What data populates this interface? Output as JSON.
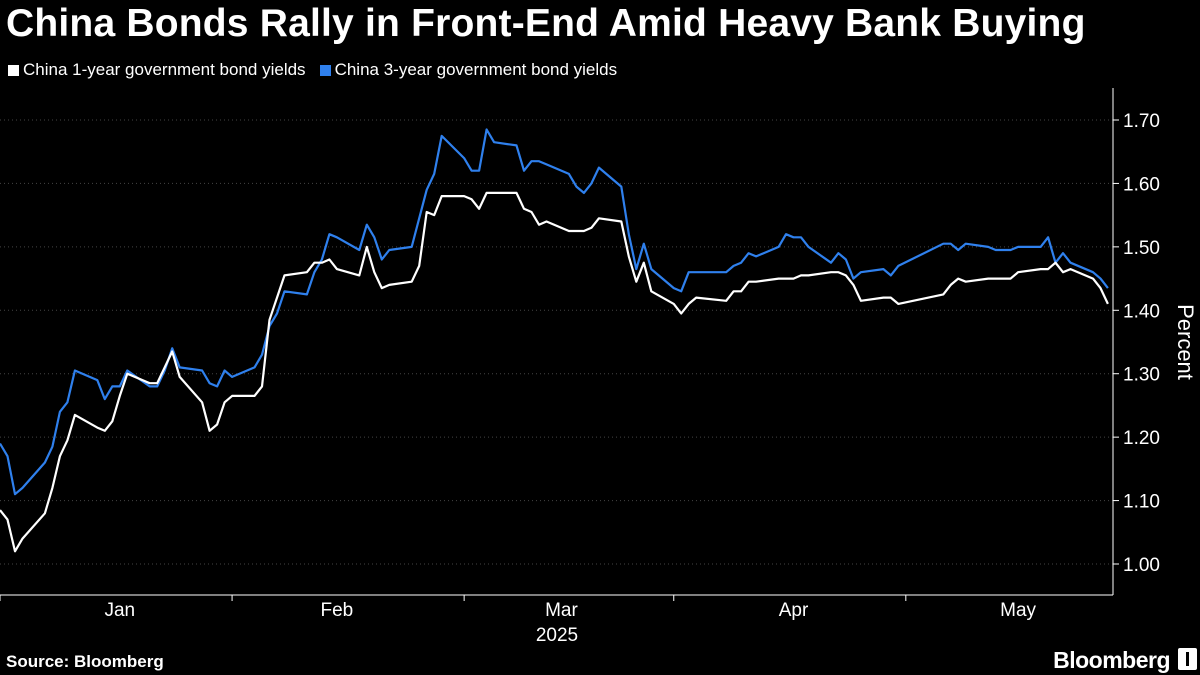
{
  "header": {
    "title": "China Bonds Rally in Front-End Amid Heavy Bank Buying"
  },
  "footer": {
    "source_label": "Source:",
    "source_value": "Bloomberg",
    "brand": "Bloomberg"
  },
  "colors": {
    "background": "#000000",
    "series_1y": "#ffffff",
    "series_3y": "#2f80ed",
    "axis": "#ffffff",
    "grid": "#444444"
  },
  "chart_data": {
    "type": "line",
    "title": "China Bonds Rally in Front-End Amid Heavy Bank Buying",
    "xlabel": "2025",
    "ylabel": "Percent",
    "ylim": [
      0.96,
      1.74
    ],
    "yticks": [
      1.0,
      1.1,
      1.2,
      1.3,
      1.4,
      1.5,
      1.6,
      1.7
    ],
    "ytick_labels": [
      "1.00",
      "1.10",
      "1.20",
      "1.30",
      "1.40",
      "1.50",
      "1.60",
      "1.70"
    ],
    "x_range": [
      "2024-12-31",
      "2025-05-24"
    ],
    "x_month_ticks": [
      "2024-12-31",
      "2025-01-31",
      "2025-03-03",
      "2025-03-31",
      "2025-05-01",
      "2025-05-31"
    ],
    "x_month_labels": [
      {
        "label": "Jan",
        "date": "2025-01-16"
      },
      {
        "label": "Feb",
        "date": "2025-02-14"
      },
      {
        "label": "Mar",
        "date": "2025-03-16"
      },
      {
        "label": "Apr",
        "date": "2025-04-16"
      },
      {
        "label": "May",
        "date": "2025-05-16"
      }
    ],
    "grid": "horizontal",
    "legend_position": "top-left",
    "series": [
      {
        "name": "China 1-year government bond yields",
        "color": "#ffffff",
        "points": [
          [
            "2024-12-31",
            1.085
          ],
          [
            "2025-01-01",
            1.07
          ],
          [
            "2025-01-02",
            1.02
          ],
          [
            "2025-01-03",
            1.04
          ],
          [
            "2025-01-06",
            1.08
          ],
          [
            "2025-01-07",
            1.12
          ],
          [
            "2025-01-08",
            1.17
          ],
          [
            "2025-01-09",
            1.195
          ],
          [
            "2025-01-10",
            1.235
          ],
          [
            "2025-01-13",
            1.215
          ],
          [
            "2025-01-14",
            1.21
          ],
          [
            "2025-01-15",
            1.225
          ],
          [
            "2025-01-16",
            1.265
          ],
          [
            "2025-01-17",
            1.3
          ],
          [
            "2025-01-20",
            1.285
          ],
          [
            "2025-01-21",
            1.285
          ],
          [
            "2025-01-22",
            1.31
          ],
          [
            "2025-01-23",
            1.335
          ],
          [
            "2025-01-24",
            1.295
          ],
          [
            "2025-01-27",
            1.255
          ],
          [
            "2025-01-28",
            1.21
          ],
          [
            "2025-01-29",
            1.22
          ],
          [
            "2025-01-30",
            1.255
          ],
          [
            "2025-01-31",
            1.265
          ],
          [
            "2025-02-03",
            1.265
          ],
          [
            "2025-02-04",
            1.28
          ],
          [
            "2025-02-05",
            1.385
          ],
          [
            "2025-02-06",
            1.42
          ],
          [
            "2025-02-07",
            1.455
          ],
          [
            "2025-02-10",
            1.46
          ],
          [
            "2025-02-11",
            1.475
          ],
          [
            "2025-02-12",
            1.475
          ],
          [
            "2025-02-13",
            1.48
          ],
          [
            "2025-02-14",
            1.465
          ],
          [
            "2025-02-17",
            1.455
          ],
          [
            "2025-02-18",
            1.5
          ],
          [
            "2025-02-19",
            1.46
          ],
          [
            "2025-02-20",
            1.435
          ],
          [
            "2025-02-21",
            1.44
          ],
          [
            "2025-02-24",
            1.445
          ],
          [
            "2025-02-25",
            1.47
          ],
          [
            "2025-02-26",
            1.555
          ],
          [
            "2025-02-27",
            1.55
          ],
          [
            "2025-02-28",
            1.58
          ],
          [
            "2025-03-03",
            1.58
          ],
          [
            "2025-03-04",
            1.575
          ],
          [
            "2025-03-05",
            1.56
          ],
          [
            "2025-03-06",
            1.585
          ],
          [
            "2025-03-07",
            1.585
          ],
          [
            "2025-03-10",
            1.585
          ],
          [
            "2025-03-11",
            1.56
          ],
          [
            "2025-03-12",
            1.555
          ],
          [
            "2025-03-13",
            1.535
          ],
          [
            "2025-03-14",
            1.54
          ],
          [
            "2025-03-17",
            1.525
          ],
          [
            "2025-03-18",
            1.525
          ],
          [
            "2025-03-19",
            1.525
          ],
          [
            "2025-03-20",
            1.53
          ],
          [
            "2025-03-21",
            1.545
          ],
          [
            "2025-03-24",
            1.54
          ],
          [
            "2025-03-25",
            1.485
          ],
          [
            "2025-03-26",
            1.445
          ],
          [
            "2025-03-27",
            1.475
          ],
          [
            "2025-03-28",
            1.43
          ],
          [
            "2025-03-31",
            1.41
          ],
          [
            "2025-04-01",
            1.395
          ],
          [
            "2025-04-02",
            1.41
          ],
          [
            "2025-04-03",
            1.42
          ],
          [
            "2025-04-07",
            1.415
          ],
          [
            "2025-04-08",
            1.43
          ],
          [
            "2025-04-09",
            1.43
          ],
          [
            "2025-04-10",
            1.445
          ],
          [
            "2025-04-11",
            1.445
          ],
          [
            "2025-04-14",
            1.45
          ],
          [
            "2025-04-15",
            1.45
          ],
          [
            "2025-04-16",
            1.45
          ],
          [
            "2025-04-17",
            1.455
          ],
          [
            "2025-04-18",
            1.455
          ],
          [
            "2025-04-21",
            1.46
          ],
          [
            "2025-04-22",
            1.46
          ],
          [
            "2025-04-23",
            1.455
          ],
          [
            "2025-04-24",
            1.44
          ],
          [
            "2025-04-25",
            1.415
          ],
          [
            "2025-04-28",
            1.42
          ],
          [
            "2025-04-29",
            1.42
          ],
          [
            "2025-04-30",
            1.41
          ],
          [
            "2025-05-06",
            1.425
          ],
          [
            "2025-05-07",
            1.44
          ],
          [
            "2025-05-08",
            1.45
          ],
          [
            "2025-05-09",
            1.445
          ],
          [
            "2025-05-12",
            1.45
          ],
          [
            "2025-05-13",
            1.45
          ],
          [
            "2025-05-14",
            1.45
          ],
          [
            "2025-05-15",
            1.45
          ],
          [
            "2025-05-16",
            1.46
          ],
          [
            "2025-05-19",
            1.465
          ],
          [
            "2025-05-20",
            1.465
          ],
          [
            "2025-05-21",
            1.475
          ],
          [
            "2025-05-22",
            1.46
          ],
          [
            "2025-05-23",
            1.465
          ],
          [
            "2025-05-26",
            1.45
          ],
          [
            "2025-05-27",
            1.435
          ],
          [
            "2025-05-28",
            1.41
          ]
        ]
      },
      {
        "name": "China 3-year government bond yields",
        "color": "#2f80ed",
        "points": [
          [
            "2024-12-31",
            1.19
          ],
          [
            "2025-01-01",
            1.17
          ],
          [
            "2025-01-02",
            1.11
          ],
          [
            "2025-01-03",
            1.12
          ],
          [
            "2025-01-06",
            1.16
          ],
          [
            "2025-01-07",
            1.185
          ],
          [
            "2025-01-08",
            1.24
          ],
          [
            "2025-01-09",
            1.255
          ],
          [
            "2025-01-10",
            1.305
          ],
          [
            "2025-01-13",
            1.29
          ],
          [
            "2025-01-14",
            1.26
          ],
          [
            "2025-01-15",
            1.28
          ],
          [
            "2025-01-16",
            1.28
          ],
          [
            "2025-01-17",
            1.305
          ],
          [
            "2025-01-20",
            1.28
          ],
          [
            "2025-01-21",
            1.28
          ],
          [
            "2025-01-22",
            1.305
          ],
          [
            "2025-01-23",
            1.34
          ],
          [
            "2025-01-24",
            1.31
          ],
          [
            "2025-01-27",
            1.305
          ],
          [
            "2025-01-28",
            1.285
          ],
          [
            "2025-01-29",
            1.28
          ],
          [
            "2025-01-30",
            1.305
          ],
          [
            "2025-01-31",
            1.295
          ],
          [
            "2025-02-03",
            1.31
          ],
          [
            "2025-02-04",
            1.33
          ],
          [
            "2025-02-05",
            1.375
          ],
          [
            "2025-02-06",
            1.395
          ],
          [
            "2025-02-07",
            1.43
          ],
          [
            "2025-02-10",
            1.425
          ],
          [
            "2025-02-11",
            1.46
          ],
          [
            "2025-02-12",
            1.48
          ],
          [
            "2025-02-13",
            1.52
          ],
          [
            "2025-02-14",
            1.515
          ],
          [
            "2025-02-17",
            1.495
          ],
          [
            "2025-02-18",
            1.535
          ],
          [
            "2025-02-19",
            1.515
          ],
          [
            "2025-02-20",
            1.48
          ],
          [
            "2025-02-21",
            1.495
          ],
          [
            "2025-02-24",
            1.5
          ],
          [
            "2025-02-25",
            1.545
          ],
          [
            "2025-02-26",
            1.59
          ],
          [
            "2025-02-27",
            1.615
          ],
          [
            "2025-02-28",
            1.675
          ],
          [
            "2025-03-03",
            1.64
          ],
          [
            "2025-03-04",
            1.62
          ],
          [
            "2025-03-05",
            1.62
          ],
          [
            "2025-03-06",
            1.685
          ],
          [
            "2025-03-07",
            1.665
          ],
          [
            "2025-03-10",
            1.66
          ],
          [
            "2025-03-11",
            1.62
          ],
          [
            "2025-03-12",
            1.635
          ],
          [
            "2025-03-13",
            1.635
          ],
          [
            "2025-03-14",
            1.63
          ],
          [
            "2025-03-17",
            1.615
          ],
          [
            "2025-03-18",
            1.595
          ],
          [
            "2025-03-19",
            1.585
          ],
          [
            "2025-03-20",
            1.6
          ],
          [
            "2025-03-21",
            1.625
          ],
          [
            "2025-03-24",
            1.595
          ],
          [
            "2025-03-25",
            1.52
          ],
          [
            "2025-03-26",
            1.465
          ],
          [
            "2025-03-27",
            1.505
          ],
          [
            "2025-03-28",
            1.465
          ],
          [
            "2025-03-31",
            1.435
          ],
          [
            "2025-04-01",
            1.43
          ],
          [
            "2025-04-02",
            1.46
          ],
          [
            "2025-04-03",
            1.46
          ],
          [
            "2025-04-07",
            1.46
          ],
          [
            "2025-04-08",
            1.47
          ],
          [
            "2025-04-09",
            1.475
          ],
          [
            "2025-04-10",
            1.49
          ],
          [
            "2025-04-11",
            1.485
          ],
          [
            "2025-04-14",
            1.5
          ],
          [
            "2025-04-15",
            1.52
          ],
          [
            "2025-04-16",
            1.515
          ],
          [
            "2025-04-17",
            1.515
          ],
          [
            "2025-04-18",
            1.5
          ],
          [
            "2025-04-21",
            1.475
          ],
          [
            "2025-04-22",
            1.49
          ],
          [
            "2025-04-23",
            1.48
          ],
          [
            "2025-04-24",
            1.45
          ],
          [
            "2025-04-25",
            1.46
          ],
          [
            "2025-04-28",
            1.465
          ],
          [
            "2025-04-29",
            1.455
          ],
          [
            "2025-04-30",
            1.47
          ],
          [
            "2025-05-06",
            1.505
          ],
          [
            "2025-05-07",
            1.505
          ],
          [
            "2025-05-08",
            1.495
          ],
          [
            "2025-05-09",
            1.505
          ],
          [
            "2025-05-12",
            1.5
          ],
          [
            "2025-05-13",
            1.495
          ],
          [
            "2025-05-14",
            1.495
          ],
          [
            "2025-05-15",
            1.495
          ],
          [
            "2025-05-16",
            1.5
          ],
          [
            "2025-05-19",
            1.5
          ],
          [
            "2025-05-20",
            1.515
          ],
          [
            "2025-05-21",
            1.475
          ],
          [
            "2025-05-22",
            1.49
          ],
          [
            "2025-05-23",
            1.475
          ],
          [
            "2025-05-26",
            1.46
          ],
          [
            "2025-05-27",
            1.45
          ],
          [
            "2025-05-28",
            1.435
          ]
        ]
      }
    ]
  }
}
